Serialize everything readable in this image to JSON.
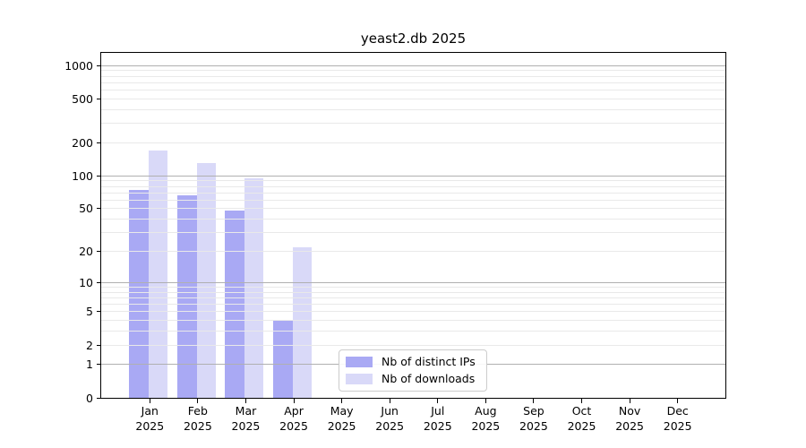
{
  "title": "yeast2.db 2025",
  "colors": {
    "distinct_ips": "#a9a9f4",
    "downloads": "#d9d9f8",
    "grid_major": "#b0b0b0",
    "grid_minor": "#e9e9e9",
    "axis": "#000000",
    "background": "#ffffff",
    "legend_border": "#cccccc"
  },
  "chart_data": {
    "type": "bar",
    "title": "yeast2.db 2025",
    "categories": [
      "Jan 2025",
      "Feb 2025",
      "Mar 2025",
      "Apr 2025",
      "May 2025",
      "Jun 2025",
      "Jul 2025",
      "Aug 2025",
      "Sep 2025",
      "Oct 2025",
      "Nov 2025",
      "Dec 2025"
    ],
    "series": [
      {
        "name": "Nb of distinct IPs",
        "color": "#a9a9f4",
        "values": [
          74,
          66,
          48,
          4,
          0,
          0,
          0,
          0,
          0,
          0,
          0,
          0
        ]
      },
      {
        "name": "Nb of downloads",
        "color": "#d9d9f8",
        "values": [
          171,
          130,
          95,
          22,
          0,
          0,
          0,
          0,
          0,
          0,
          0,
          0
        ]
      }
    ],
    "xlabel": "",
    "ylabel": "",
    "yscale": "log1p",
    "ylim": [
      0,
      1300
    ],
    "yticks": [
      1000,
      500,
      200,
      100,
      50,
      20,
      10,
      5,
      2,
      1,
      0
    ],
    "grid": true,
    "legend_position": "lower center"
  }
}
